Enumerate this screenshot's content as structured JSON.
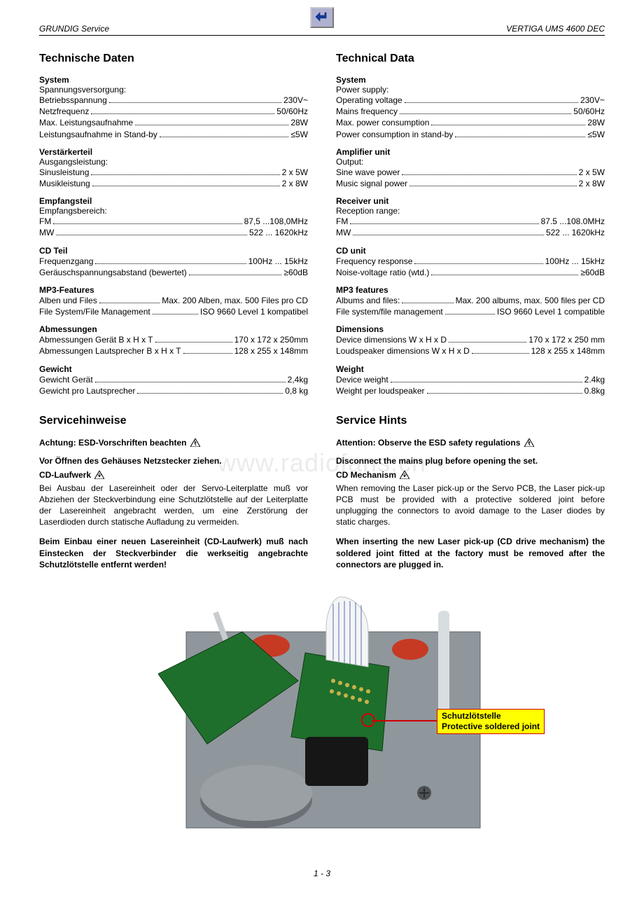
{
  "header": {
    "left": "GRUNDIG Service",
    "right": "VERTIGA UMS 4600 DEC"
  },
  "watermark": "www.radiofans.cn",
  "page_number": "1 - 3",
  "de": {
    "title": "Technische Daten",
    "system": {
      "heading": "System",
      "sub": "Spannungsversorgung:",
      "rows": [
        {
          "l": "Betriebsspannung",
          "v": "230V~"
        },
        {
          "l": "Netzfrequenz",
          "v": "50/60Hz"
        },
        {
          "l": "Max. Leistungsaufnahme",
          "v": "28W"
        },
        {
          "l": "Leistungsaufnahme in Stand-by",
          "v": "≤5W"
        }
      ]
    },
    "amp": {
      "heading": "Verstärkerteil",
      "sub": "Ausgangsleistung:",
      "rows": [
        {
          "l": "Sinusleistung",
          "v": "2 x 5W"
        },
        {
          "l": "Musikleistung",
          "v": "2 x 8W"
        }
      ]
    },
    "recv": {
      "heading": "Empfangsteil",
      "sub": "Empfangsbereich:",
      "rows": [
        {
          "l": "FM",
          "v": "87,5 ...108,0MHz"
        },
        {
          "l": "MW",
          "v": "522 ... 1620kHz"
        }
      ]
    },
    "cd": {
      "heading": "CD Teil",
      "rows": [
        {
          "l": "Frequenzgang",
          "v": "100Hz ... 15kHz"
        },
        {
          "l": "Geräuschspannungsabstand (bewertet)",
          "v": "≥60dB"
        }
      ]
    },
    "mp3": {
      "heading": "MP3-Features",
      "rows": [
        {
          "l": "Alben und Files",
          "v": "Max. 200 Alben, max. 500 Files pro CD"
        },
        {
          "l": "File System/File Management",
          "v": "ISO 9660 Level 1 kompatibel"
        }
      ]
    },
    "dim": {
      "heading": "Abmessungen",
      "rows": [
        {
          "l": "Abmessungen Gerät B x H x T",
          "v": "170 x 172 x 250mm"
        },
        {
          "l": "Abmessungen Lautsprecher B x H x T",
          "v": "128 x 255 x 148mm"
        }
      ]
    },
    "wt": {
      "heading": "Gewicht",
      "rows": [
        {
          "l": "Gewicht Gerät",
          "v": "2,4kg"
        },
        {
          "l": "Gewicht pro Lautsprecher",
          "v": "0,8 kg"
        }
      ]
    },
    "service": {
      "title": "Servicehinweise",
      "esd": "Achtung: ESD-Vorschriften beachten",
      "unplug": "Vor Öffnen des Gehäuses Netzstecker ziehen.",
      "cd_heading": "CD-Laufwerk",
      "p1": "Bei Ausbau der Lasereinheit oder der Servo-Leiterplatte muß vor Abziehen der Steckverbindung eine Schutzlötstelle auf der Leiterplatte der Lasereinheit angebracht werden, um eine Zerstörung der Laserdioden durch statische Aufladung zu vermeiden.",
      "p2": "Beim Einbau einer neuen Lasereinheit (CD-Laufwerk) muß nach Einstecken der Steckverbinder die werkseitig angebrachte Schutzlötstelle entfernt werden!"
    }
  },
  "en": {
    "title": "Technical Data",
    "system": {
      "heading": "System",
      "sub": "Power supply:",
      "rows": [
        {
          "l": "Operating voltage",
          "v": "230V~"
        },
        {
          "l": "Mains frequency",
          "v": "50/60Hz"
        },
        {
          "l": "Max. power consumption",
          "v": "28W"
        },
        {
          "l": "Power consumption in stand-by",
          "v": "≤5W"
        }
      ]
    },
    "amp": {
      "heading": "Amplifier unit",
      "sub": "Output:",
      "rows": [
        {
          "l": "Sine wave power",
          "v": "2 x 5W"
        },
        {
          "l": "Music signal power",
          "v": "2 x 8W"
        }
      ]
    },
    "recv": {
      "heading": "Receiver unit",
      "sub": "Reception range:",
      "rows": [
        {
          "l": "FM",
          "v": "87.5 ...108.0MHz"
        },
        {
          "l": "MW",
          "v": "522 ... 1620kHz"
        }
      ]
    },
    "cd": {
      "heading": "CD unit",
      "rows": [
        {
          "l": "Frequency response",
          "v": "100Hz ... 15kHz"
        },
        {
          "l": "Noise-voltage ratio (wtd.)",
          "v": "≥60dB"
        }
      ]
    },
    "mp3": {
      "heading": "MP3 features",
      "rows": [
        {
          "l": "Albums and files:",
          "v": "Max. 200 albums, max. 500 files per CD"
        },
        {
          "l": "File system/file management",
          "v": "ISO 9660 Level 1 compatible"
        }
      ]
    },
    "dim": {
      "heading": "Dimensions",
      "rows": [
        {
          "l": "Device dimensions W x H x D",
          "v": "170 x 172 x 250 mm"
        },
        {
          "l": "Loudspeaker dimensions W x H x D",
          "v": "128 x 255 x 148mm"
        }
      ]
    },
    "wt": {
      "heading": "Weight",
      "rows": [
        {
          "l": "Device weight",
          "v": "2.4kg"
        },
        {
          "l": "Weight per loudspeaker",
          "v": "0.8kg"
        }
      ]
    },
    "service": {
      "title": "Service Hints",
      "esd": "Attention: Observe the ESD safety regulations",
      "unplug": "Disconnect the mains plug before opening the set.",
      "cd_heading": "CD Mechanism",
      "p1": "When removing the Laser pick-up or the Servo PCB, the Laser pick-up PCB must be provided with a protective soldered joint before unplugging the connectors to avoid damage to the Laser diodes by static charges.",
      "p2": "When inserting the new Laser pick-up (CD drive mechanism) the soldered joint fitted at the factory must be removed after the connectors are plugged in."
    }
  },
  "callout": {
    "line1": "Schutzlötstelle",
    "line2": "Protective soldered joint"
  },
  "colors": {
    "callout_bg": "#ffff00",
    "callout_border": "#d00000",
    "pcb_green": "#1f6f2c",
    "chassis": "#8f979c",
    "red_part": "#c63a24"
  }
}
